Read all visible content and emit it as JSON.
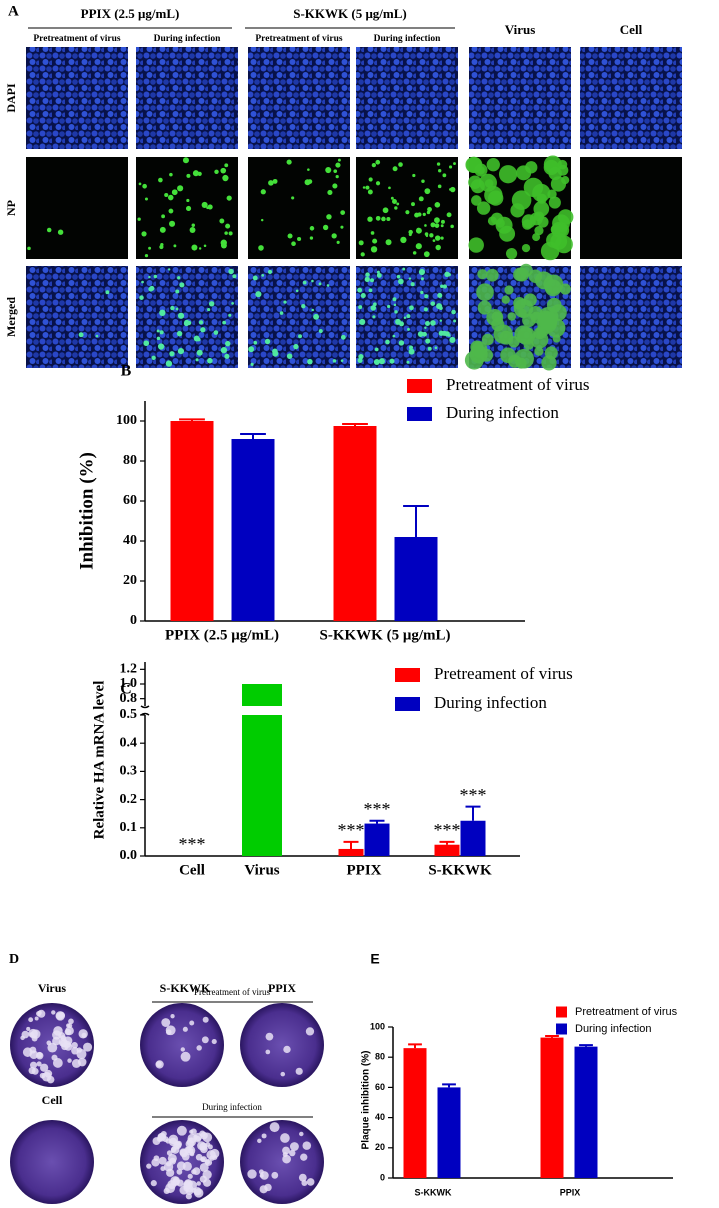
{
  "panel_a": {
    "label": "A",
    "groups": [
      {
        "title": "PPIX (2.5 μg/mL)",
        "columns": [
          "Pretreatment of virus",
          "During infection"
        ]
      },
      {
        "title": "S-KKWK (5 μg/mL)",
        "columns": [
          "Pretreatment of virus",
          "During infection"
        ]
      }
    ],
    "controls": [
      "Virus",
      "Cell"
    ],
    "rows": [
      "DAPI",
      "NP",
      "Merged"
    ]
  },
  "chart_data": [
    {
      "type": "bar",
      "panel_label": "B",
      "ylabel": "Inhibition (%)",
      "categories": [
        "PPIX (2.5 μg/mL)",
        "S-KKWK (5 μg/mL)"
      ],
      "series": [
        {
          "name": "Pretreatment of virus",
          "color": "#ff0000",
          "values": [
            100,
            97.5
          ],
          "errors": [
            0.8,
            1
          ]
        },
        {
          "name": "During infection",
          "color": "#0000c0",
          "values": [
            91,
            42
          ],
          "errors": [
            2.5,
            15.5
          ]
        }
      ],
      "ylim": [
        0,
        110
      ],
      "yticks": [
        0,
        20,
        40,
        60,
        80,
        100
      ],
      "grid": false,
      "legend": "upper right"
    },
    {
      "type": "bar",
      "panel_label": "C",
      "ylabel": "Relative HA mRNA level",
      "categories": [
        "Cell",
        "Virus",
        "PPIX",
        "S-KKWK"
      ],
      "control": {
        "color": "#00cc00",
        "values": [
          0,
          1.0,
          null,
          null
        ],
        "significance": [
          "***",
          null,
          null,
          null
        ]
      },
      "series": [
        {
          "name": "Pretreament of virus",
          "color": "#ff0000",
          "values": [
            null,
            null,
            0.025,
            0.04
          ],
          "errors": [
            null,
            null,
            0.025,
            0.01
          ],
          "significance": [
            null,
            null,
            "***",
            "***"
          ]
        },
        {
          "name": "During infection",
          "color": "#0000c0",
          "values": [
            null,
            null,
            0.115,
            0.125
          ],
          "errors": [
            null,
            null,
            0.01,
            0.05
          ],
          "significance": [
            null,
            null,
            "***",
            "***"
          ]
        }
      ],
      "ylim": [
        0,
        0.5
      ],
      "yticks": [
        {
          "value": 0,
          "label": "0.0"
        },
        0.1,
        0.2,
        0.3,
        0.4,
        0.5
      ],
      "ylim_upper": [
        0.7,
        1.3
      ],
      "yticks_upper": [
        0.8,
        {
          "value": 1,
          "label": "1.0"
        },
        1.2
      ],
      "grid": false,
      "legend": "upper right"
    },
    {
      "type": "bar",
      "panel_label": "E",
      "ylabel": "Plaque inhibition (%)",
      "categories": [
        "S-KKWK",
        "PPIX"
      ],
      "series": [
        {
          "name": "Pretreatment of virus",
          "color": "#ff0000",
          "values": [
            86,
            93
          ],
          "errors": [
            2.5,
            1
          ]
        },
        {
          "name": "During infection",
          "color": "#0000c0",
          "values": [
            60,
            87
          ],
          "errors": [
            2,
            1
          ]
        }
      ],
      "ylim": [
        0,
        100
      ],
      "yticks": [
        0,
        20,
        40,
        60,
        80,
        100
      ],
      "grid": false,
      "legend": "upper right"
    }
  ],
  "panel_d": {
    "label": "D",
    "columns": [
      "Virus",
      "S-KKWK",
      "PPIX"
    ],
    "cell": "Cell",
    "conditions": [
      "Pretreatment of virus",
      "During infection"
    ]
  }
}
